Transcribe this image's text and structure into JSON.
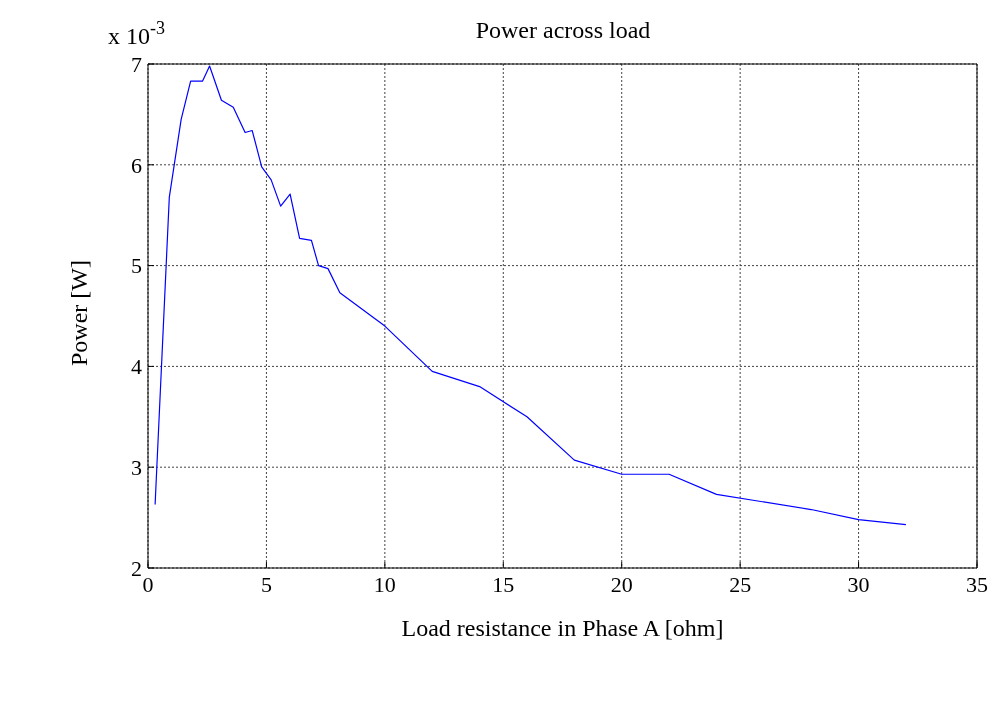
{
  "chart_data": {
    "type": "line",
    "title": "Power across load",
    "xlabel": "Load resistance in Phase A [ohm]",
    "ylabel": "Power [W]",
    "annotations": [
      "x 10$^{-3}$"
    ],
    "x": [
      0.3,
      0.9,
      1.4,
      1.8,
      2.3,
      2.6,
      3.1,
      3.6,
      4.1,
      4.4,
      4.8,
      5.2,
      5.6,
      6.0,
      6.4,
      6.9,
      7.2,
      7.6,
      8.1,
      10,
      12,
      14,
      16,
      18,
      20,
      22,
      24,
      28,
      30,
      32
    ],
    "series": [
      {
        "color": "#0000ff",
        "values": [
          2.63,
          5.68,
          6.45,
          6.83,
          6.83,
          6.98,
          6.64,
          6.57,
          6.32,
          6.34,
          5.98,
          5.85,
          5.59,
          5.71,
          5.27,
          5.25,
          5.0,
          4.97,
          4.73,
          4.4,
          3.95,
          3.8,
          3.5,
          3.07,
          2.93,
          2.93,
          2.73,
          2.58,
          2.48,
          2.43
        ]
      }
    ],
    "xlim": [
      0,
      35
    ],
    "xticks": [
      0,
      5,
      10,
      15,
      20,
      25,
      30,
      35
    ],
    "ylim": [
      2,
      7
    ],
    "yticks": [
      2,
      3,
      4,
      5,
      6,
      7
    ],
    "grid": true,
    "marker": "none",
    "line_style": "solid"
  }
}
